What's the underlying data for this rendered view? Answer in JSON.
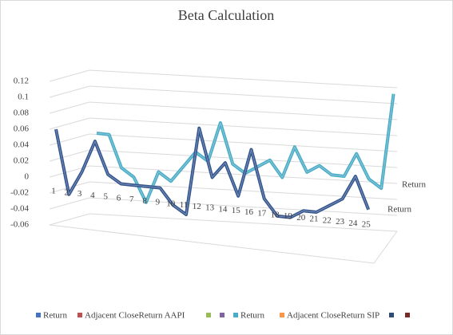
{
  "chart_data": {
    "type": "line3d",
    "title": "Beta Calculation",
    "categories": [
      "1",
      "2",
      "3",
      "4",
      "5",
      "6",
      "7",
      "8",
      "9",
      "10",
      "11",
      "12",
      "13",
      "14",
      "15",
      "16",
      "17",
      "18",
      "19",
      "20",
      "21",
      "22",
      "23",
      "24",
      "25"
    ],
    "series": [
      {
        "name": "Return",
        "color": "#34558f",
        "values": [
          0.06,
          -0.02,
          0.01,
          0.05,
          0.01,
          0,
          0,
          0,
          0,
          -0.02,
          -0.03,
          0.08,
          0.02,
          0.04,
          0,
          0.06,
          0,
          -0.02,
          -0.02,
          -0.01,
          -0.01,
          0,
          0.01,
          0.04,
          0
        ]
      },
      {
        "name": "Return",
        "color": "#4bacc6",
        "values": [
          0.03,
          0.03,
          -0.01,
          -0.02,
          -0.05,
          -0.01,
          -0.02,
          0,
          0.02,
          0.01,
          0.06,
          0.01,
          0,
          0.01,
          0.02,
          0,
          0.04,
          0.01,
          0.02,
          0.01,
          0.01,
          0.04,
          0.01,
          0,
          0.12
        ]
      }
    ],
    "ylim": [
      -0.06,
      0.12
    ],
    "yticks": [
      -0.06,
      -0.04,
      -0.02,
      0,
      0.02,
      0.04,
      0.06,
      0.08,
      0.1,
      0.12
    ],
    "grid": true,
    "legend": [
      {
        "name": "Return",
        "color": "#4472c4"
      },
      {
        "name": "Adjacent CloseReturn AAPI",
        "color": "#c0504d"
      },
      {
        "name": null,
        "color": "#9bbb59"
      },
      {
        "name": null,
        "color": "#8064a2"
      },
      {
        "name": "Return",
        "color": "#4bacc6"
      },
      {
        "name": "Adjacent CloseReturn SIP",
        "color": "#f79646"
      },
      {
        "name": null,
        "color": "#2c4d75"
      },
      {
        "name": null,
        "color": "#772c2a"
      }
    ]
  }
}
